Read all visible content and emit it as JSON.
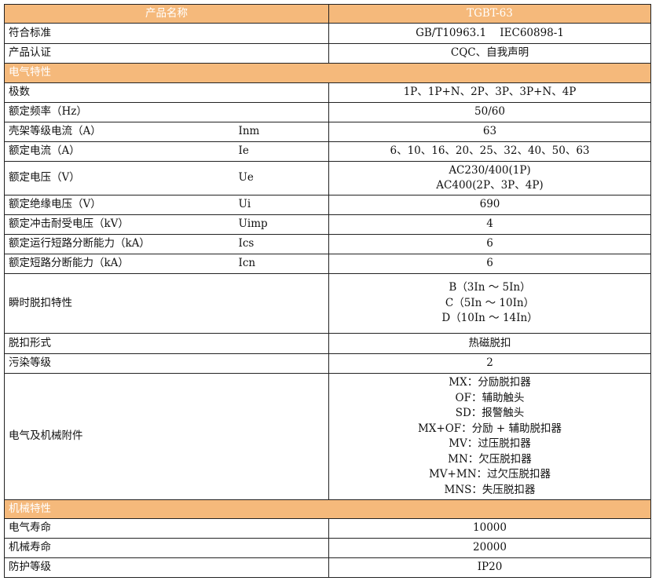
{
  "header": {
    "name_label": "产品名称",
    "model": "TGBT-63"
  },
  "rows_top": [
    {
      "label": "符合标准",
      "value": "GB/T10963.1    IEC60898-1"
    },
    {
      "label": "产品认证",
      "value": "CQC、自我声明"
    }
  ],
  "section_electrical": "电气特性",
  "electrical": [
    {
      "label": "极数",
      "symbol": "",
      "value": "1P、1P+N、2P、3P、3P+N、4P"
    },
    {
      "label": "额定频率（Hz）",
      "symbol": "",
      "value": "50/60"
    },
    {
      "label": "壳架等级电流（A）",
      "symbol": "Inm",
      "value": "63"
    },
    {
      "label": "额定电流（A）",
      "symbol": "Ie",
      "value": "6、10、16、20、25、32、40、50、63"
    },
    {
      "label": "额定电压（V）",
      "symbol": "Ue",
      "values": [
        "AC230/400(1P)",
        "AC400(2P、3P、4P)"
      ]
    },
    {
      "label": "额定绝缘电压（V）",
      "symbol": "Ui",
      "value": "690"
    },
    {
      "label": "额定冲击耐受电压（kV）",
      "symbol": "Uimp",
      "value": "4"
    },
    {
      "label": "额定运行短路分断能力（kA）",
      "symbol": "Ics",
      "value": "6"
    },
    {
      "label": "额定短路分断能力（kA）",
      "symbol": "Icn",
      "value": "6"
    },
    {
      "label": "瞬时脱扣特性",
      "symbol": "",
      "values": [
        "B（3In ～ 5In）",
        "C（5In ～ 10In）",
        "D（10In ～ 14In）"
      ]
    },
    {
      "label": "脱扣形式",
      "symbol": "",
      "value": "热磁脱扣"
    },
    {
      "label": "污染等级",
      "symbol": "",
      "value": "2"
    },
    {
      "label": "电气及机械附件",
      "symbol": "",
      "values": [
        "MX：分励脱扣器",
        "OF：辅助触头",
        "SD：报警触头",
        "MX+OF：分励 + 辅助脱扣器",
        "MV：过压脱扣器",
        "MN：欠压脱扣器",
        "MV+MN：过欠压脱扣器",
        "MNS：失压脱扣器"
      ]
    }
  ],
  "section_mechanical": "机械特性",
  "mechanical": [
    {
      "label": "电气寿命",
      "value": "10000"
    },
    {
      "label": "机械寿命",
      "value": "20000"
    },
    {
      "label": "防护等级",
      "value": "IP20"
    }
  ]
}
